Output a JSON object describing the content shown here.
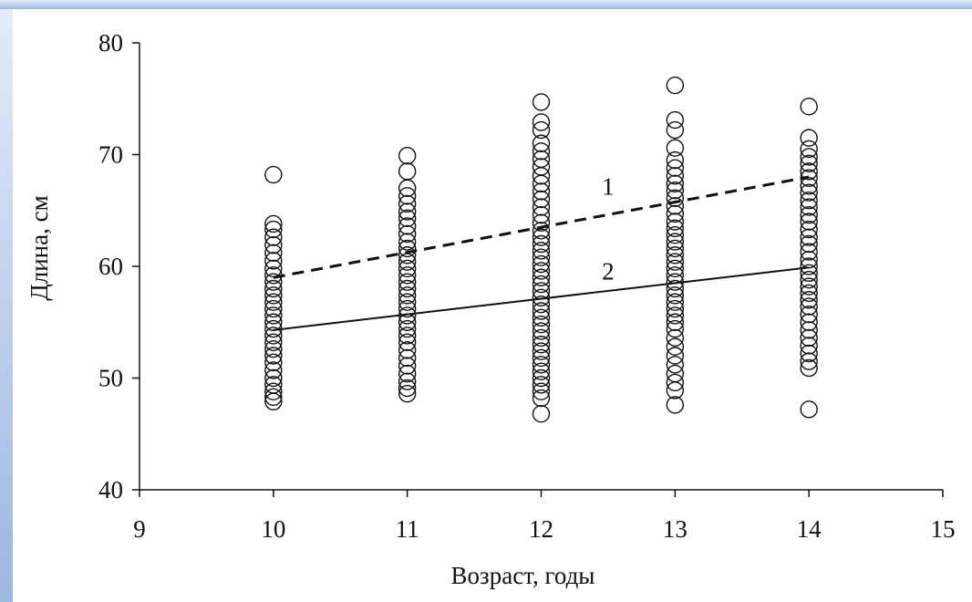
{
  "chart_data": {
    "type": "scatter",
    "title": "",
    "xlabel": "Возраст, годы",
    "ylabel": "Длина, см",
    "xlim": [
      9,
      15
    ],
    "ylim": [
      40,
      80
    ],
    "xticks": [
      9,
      10,
      11,
      12,
      13,
      14,
      15
    ],
    "yticks": [
      40,
      50,
      60,
      70,
      80
    ],
    "grid": false,
    "marker": "open-circle",
    "points": {
      "10": [
        68.2,
        63.8,
        63.3,
        62.6,
        61.9,
        61.2,
        60.5,
        59.8,
        59.2,
        58.6,
        58.0,
        57.4,
        56.8,
        56.2,
        55.6,
        55.0,
        54.4,
        53.8,
        53.2,
        52.6,
        52.0,
        51.4,
        50.7,
        50.0,
        49.4,
        48.8,
        48.3,
        47.9
      ],
      "11": [
        69.9,
        68.5,
        67.0,
        66.3,
        65.6,
        64.9,
        64.3,
        63.6,
        62.9,
        62.2,
        61.6,
        61.0,
        60.4,
        59.8,
        59.2,
        58.6,
        58.0,
        57.4,
        56.8,
        56.2,
        55.6,
        55.0,
        54.4,
        53.8,
        53.2,
        52.5,
        51.8,
        51.1,
        50.4,
        49.7,
        49.1,
        48.6
      ],
      "12": [
        74.7,
        72.9,
        72.2,
        71.0,
        70.3,
        69.6,
        68.9,
        68.1,
        67.4,
        66.7,
        66.0,
        65.3,
        64.6,
        63.9,
        63.2,
        62.6,
        62.0,
        61.4,
        60.8,
        60.2,
        59.6,
        59.0,
        58.4,
        57.8,
        57.2,
        56.6,
        56.0,
        55.4,
        54.8,
        54.2,
        53.6,
        53.0,
        52.4,
        51.8,
        51.2,
        50.6,
        50.0,
        49.4,
        48.8,
        48.2,
        46.8
      ],
      "13": [
        76.2,
        73.1,
        72.2,
        70.6,
        69.5,
        68.8,
        68.1,
        67.4,
        66.8,
        66.1,
        65.4,
        64.7,
        64.0,
        63.4,
        62.8,
        62.2,
        61.6,
        61.0,
        60.4,
        59.8,
        59.2,
        58.6,
        58.0,
        57.4,
        56.8,
        56.2,
        55.6,
        55.0,
        54.4,
        53.6,
        52.8,
        52.0,
        51.2,
        50.4,
        49.6,
        48.9,
        47.6
      ],
      "14": [
        74.3,
        71.5,
        70.5,
        69.8,
        69.2,
        68.5,
        67.9,
        67.2,
        66.6,
        65.9,
        65.3,
        64.6,
        64.0,
        63.3,
        62.6,
        62.0,
        61.3,
        60.6,
        60.0,
        59.4,
        58.8,
        58.2,
        57.6,
        57.0,
        56.4,
        55.7,
        55.0,
        54.3,
        53.6,
        52.9,
        52.2,
        51.5,
        50.9,
        47.2
      ]
    },
    "series": [
      {
        "x": [
          10,
          14
        ],
        "y": [
          59.0,
          68.0
        ],
        "style": "dashed",
        "label": "1"
      },
      {
        "x": [
          10,
          14
        ],
        "y": [
          54.3,
          59.9
        ],
        "style": "solid",
        "label": "2"
      }
    ],
    "annotations": [
      {
        "text": "1",
        "x": 12.5,
        "y": 66.4
      },
      {
        "text": "2",
        "x": 12.5,
        "y": 58.8
      }
    ]
  },
  "colors": {
    "frame_gradient_top": "#e4ecf8",
    "frame_gradient_bottom": "#9cb6e2",
    "ink": "#111111"
  }
}
